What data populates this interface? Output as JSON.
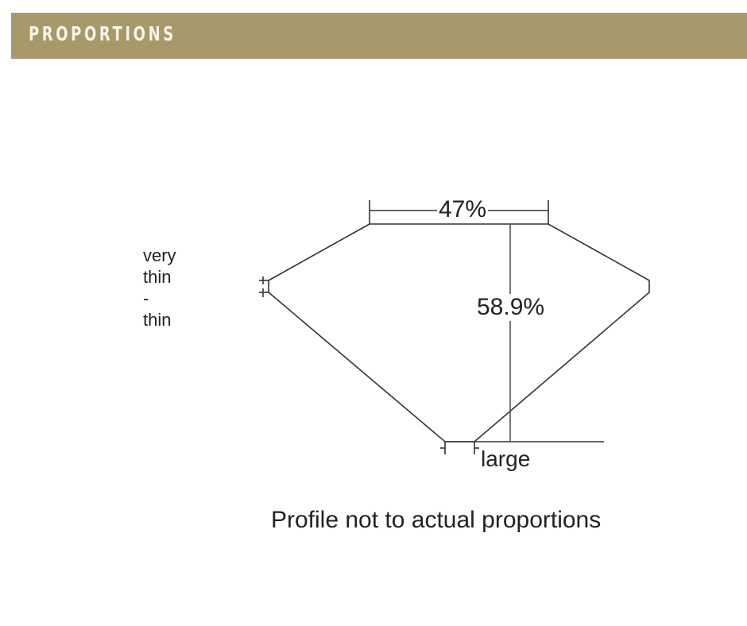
{
  "header": {
    "title": "PROPORTIONS",
    "background_color": "#a8996a"
  },
  "diagram": {
    "table_percent": "47%",
    "depth_percent": "58.9%",
    "girdle_label": [
      "very",
      "thin",
      "-",
      "thin"
    ],
    "culet_label": "large",
    "caption": "Profile not to actual proportions"
  }
}
